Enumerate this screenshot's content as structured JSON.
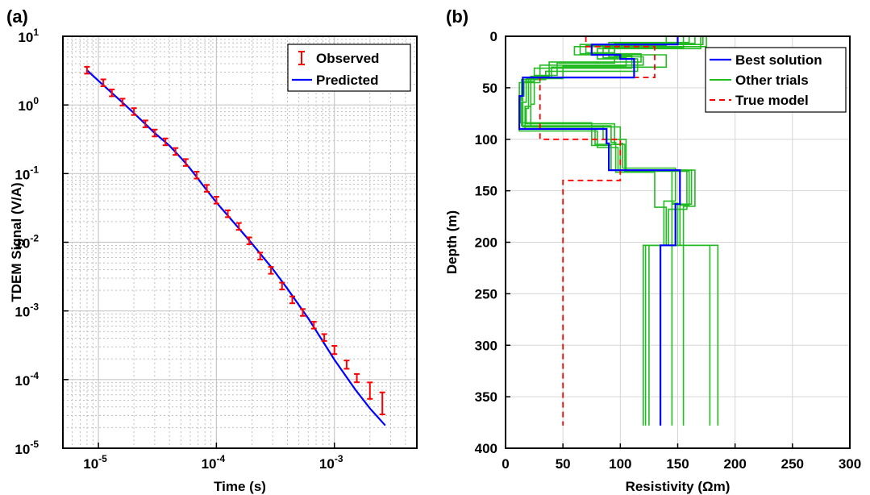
{
  "chart_data": [
    {
      "panel_label": "(a)",
      "type": "scatter",
      "xscale": "log",
      "yscale": "log",
      "xlabel": "Time (s)",
      "ylabel": "TDEM Signal (V/A)",
      "xlim": [
        5e-06,
        0.005
      ],
      "ylim": [
        1e-05,
        10
      ],
      "grid": true,
      "minor_grid": true,
      "x_ticks": [
        {
          "value": 1e-05,
          "base": "10",
          "exp": "-5"
        },
        {
          "value": 0.0001,
          "base": "10",
          "exp": "-4"
        },
        {
          "value": 0.001,
          "base": "10",
          "exp": "-3"
        }
      ],
      "y_ticks": [
        {
          "value": 1e-05,
          "base": "10",
          "exp": "-5"
        },
        {
          "value": 0.0001,
          "base": "10",
          "exp": "-4"
        },
        {
          "value": 0.001,
          "base": "10",
          "exp": "-3"
        },
        {
          "value": 0.01,
          "base": "10",
          "exp": "-2"
        },
        {
          "value": 0.1,
          "base": "10",
          "exp": "-1"
        },
        {
          "value": 1,
          "base": "10",
          "exp": "0"
        },
        {
          "value": 10,
          "base": "10",
          "exp": "1"
        }
      ],
      "legend_position": "top-right",
      "series": [
        {
          "name": "Observed",
          "style": "errorbar",
          "color": "#ff0000",
          "points": [
            {
              "x": 8e-06,
              "y": 3.2,
              "err": 0.05
            },
            {
              "x": 1.1e-05,
              "y": 2.1,
              "err": 0.05
            },
            {
              "x": 1.3e-05,
              "y": 1.5,
              "err": 0.05
            },
            {
              "x": 1.6e-05,
              "y": 1.1,
              "err": 0.05
            },
            {
              "x": 2e-05,
              "y": 0.8,
              "err": 0.05
            },
            {
              "x": 2.5e-05,
              "y": 0.53,
              "err": 0.05
            },
            {
              "x": 3e-05,
              "y": 0.39,
              "err": 0.05
            },
            {
              "x": 3.7e-05,
              "y": 0.29,
              "err": 0.05
            },
            {
              "x": 4.5e-05,
              "y": 0.21,
              "err": 0.05
            },
            {
              "x": 5.5e-05,
              "y": 0.145,
              "err": 0.05
            },
            {
              "x": 6.8e-05,
              "y": 0.095,
              "err": 0.05
            },
            {
              "x": 8.3e-05,
              "y": 0.061,
              "err": 0.05
            },
            {
              "x": 0.0001,
              "y": 0.041,
              "err": 0.05
            },
            {
              "x": 0.000125,
              "y": 0.026,
              "err": 0.05
            },
            {
              "x": 0.000155,
              "y": 0.017,
              "err": 0.05
            },
            {
              "x": 0.00019,
              "y": 0.0105,
              "err": 0.05
            },
            {
              "x": 0.000235,
              "y": 0.0063,
              "err": 0.05
            },
            {
              "x": 0.00029,
              "y": 0.0039,
              "err": 0.05
            },
            {
              "x": 0.00036,
              "y": 0.0023,
              "err": 0.05
            },
            {
              "x": 0.00044,
              "y": 0.00145,
              "err": 0.05
            },
            {
              "x": 0.00054,
              "y": 0.00095,
              "err": 0.05
            },
            {
              "x": 0.00067,
              "y": 0.00062,
              "err": 0.05
            },
            {
              "x": 0.00082,
              "y": 0.00041,
              "err": 0.05
            },
            {
              "x": 0.001,
              "y": 0.00027,
              "err": 0.06
            },
            {
              "x": 0.00127,
              "y": 0.000165,
              "err": 0.06
            },
            {
              "x": 0.00155,
              "y": 0.000105,
              "err": 0.06
            },
            {
              "x": 0.002,
              "y": 6.9e-05,
              "err": 0.12
            },
            {
              "x": 0.00255,
              "y": 4.5e-05,
              "err": 0.16
            }
          ]
        },
        {
          "name": "Predicted",
          "style": "line",
          "color": "#0000ff",
          "x": [
            8e-06,
            1e-05,
            1.5e-05,
            2e-05,
            3e-05,
            4e-05,
            5e-05,
            6e-05,
            8e-05,
            0.0001,
            0.00015,
            0.0002,
            0.0003,
            0.0004,
            0.0006,
            0.0008,
            0.001,
            0.0015,
            0.002,
            0.0027
          ],
          "y": [
            3.2,
            2.25,
            1.2,
            0.76,
            0.39,
            0.255,
            0.17,
            0.118,
            0.062,
            0.038,
            0.017,
            0.0096,
            0.0041,
            0.0021,
            0.00078,
            0.00036,
            0.000195,
            7.2e-05,
            3.8e-05,
            2.15e-05
          ]
        }
      ]
    },
    {
      "panel_label": "(b)",
      "type": "line",
      "xlabel": "Resistivity (Ωm)",
      "ylabel": "Depth (m)",
      "xlim": [
        0,
        300
      ],
      "ylim": [
        0,
        400
      ],
      "y_inverted": true,
      "grid": true,
      "x_ticks": [
        0,
        50,
        100,
        150,
        200,
        250,
        300
      ],
      "y_ticks": [
        0,
        50,
        100,
        150,
        200,
        250,
        300,
        350,
        400
      ],
      "legend_position": "top-right",
      "series": [
        {
          "name": "Best solution",
          "style": "step",
          "color": "#0000ff",
          "resistivity": [
            150,
            75,
            100,
            112,
            15,
            12,
            88,
            90,
            152,
            148,
            135
          ],
          "depth_tops": [
            0,
            8,
            18,
            22,
            40,
            58,
            90,
            104,
            130,
            163,
            203
          ],
          "max_depth": 378
        },
        {
          "name": "Other trials",
          "style": "step",
          "color": "#22bb22",
          "models": [
            {
              "resistivity": [
                175,
                60,
                140,
                40,
                20,
                18,
                95,
                100,
                165,
                155,
                185
              ],
              "depth_tops": [
                0,
                10,
                18,
                30,
                40,
                70,
                85,
                105,
                130,
                165,
                203
              ]
            },
            {
              "resistivity": [
                160,
                90,
                120,
                30,
                12,
                15,
                85,
                105,
                162,
                145,
                178
              ],
              "depth_tops": [
                0,
                6,
                20,
                28,
                45,
                60,
                88,
                100,
                130,
                163,
                203
              ]
            },
            {
              "resistivity": [
                170,
                80,
                115,
                35,
                14,
                12,
                80,
                98,
                158,
                142,
                155
              ],
              "depth_tops": [
                0,
                12,
                22,
                34,
                42,
                62,
                92,
                108,
                130,
                168,
                203
              ]
            },
            {
              "resistivity": [
                140,
                70,
                95,
                45,
                25,
                22,
                100,
                102,
                148,
                138,
                125
              ],
              "depth_tops": [
                0,
                9,
                16,
                26,
                38,
                66,
                88,
                104,
                128,
                160,
                203
              ]
            },
            {
              "resistivity": [
                165,
                95,
                110,
                25,
                16,
                13,
                75,
                92,
                145,
                150,
                145
              ],
              "depth_tops": [
                0,
                7,
                19,
                31,
                44,
                58,
                84,
                106,
                130,
                162,
                203
              ]
            },
            {
              "resistivity": [
                155,
                85,
                105,
                50,
                18,
                14,
                92,
                96,
                130,
                140,
                120
              ],
              "depth_tops": [
                0,
                11,
                21,
                29,
                41,
                64,
                87,
                103,
                132,
                166,
                203
              ]
            },
            {
              "resistivity": [
                172,
                65,
                118,
                38,
                22,
                17,
                78,
                104,
                160,
                152,
                122
              ],
              "depth_tops": [
                0,
                8,
                17,
                25,
                39,
                68,
                90,
                105,
                131,
                164,
                203
              ]
            }
          ],
          "max_depth": 378
        },
        {
          "name": "True model",
          "style": "step-dashed",
          "color": "#ff0000",
          "resistivity": [
            70,
            130,
            30,
            100,
            50
          ],
          "depth_tops": [
            0,
            10,
            40,
            100,
            140
          ],
          "max_depth": 378
        }
      ]
    }
  ]
}
